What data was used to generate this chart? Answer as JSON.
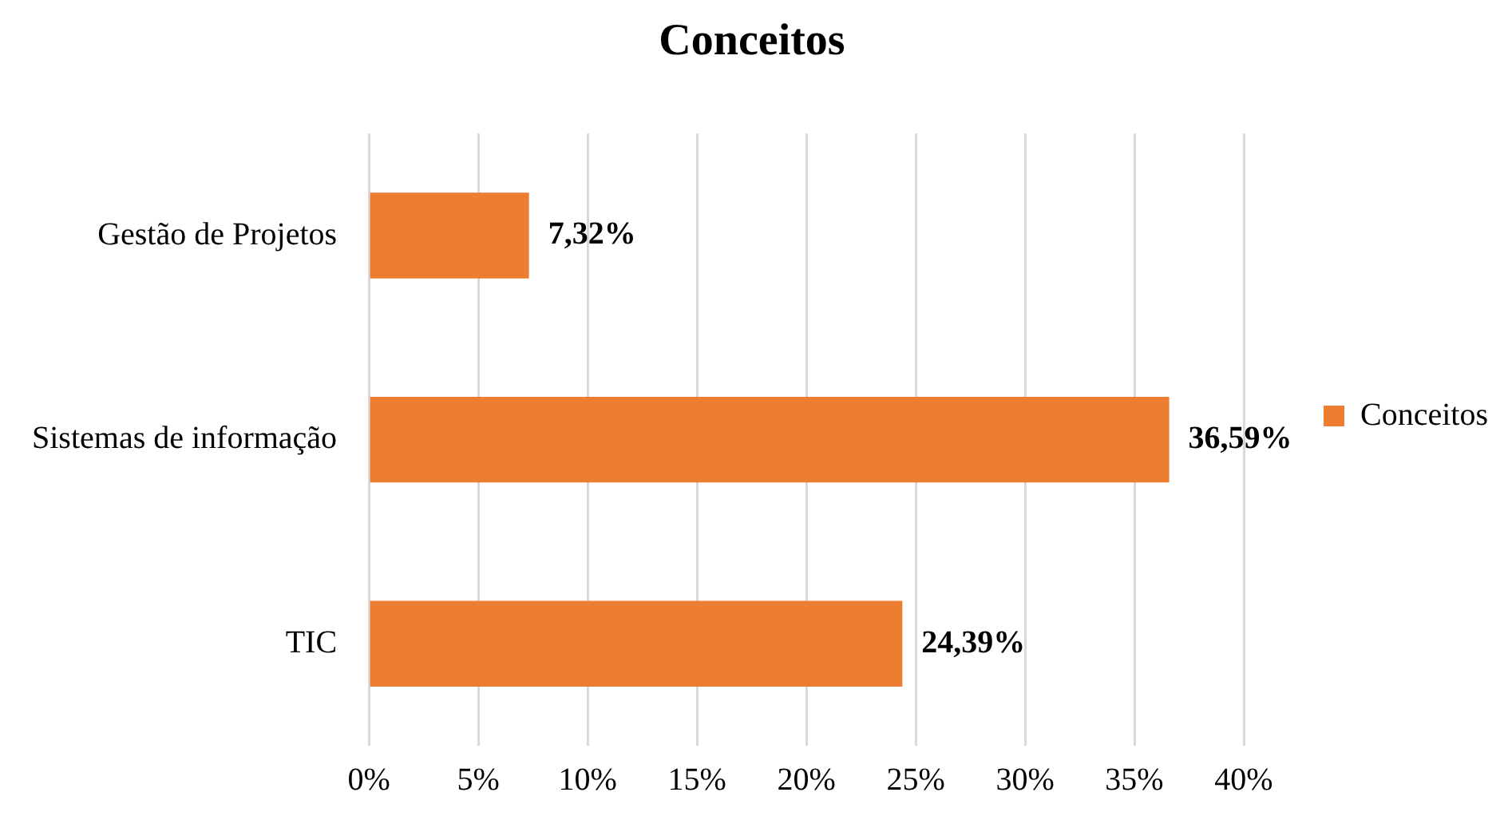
{
  "chart_data": {
    "type": "bar",
    "title": "Conceitos",
    "orientation": "horizontal",
    "categories": [
      "Gestão de Projetos",
      "Sistemas de informação",
      "TIC"
    ],
    "series": [
      {
        "name": "Conceitos",
        "color": "#ed7d31",
        "values": [
          7.32,
          36.59,
          24.39
        ],
        "value_labels": [
          "7,32%",
          "36,59%",
          "24,39%"
        ]
      }
    ],
    "xlim": [
      0,
      40
    ],
    "xticks": [
      {
        "value": 0,
        "label": "0%"
      },
      {
        "value": 5,
        "label": "5%"
      },
      {
        "value": 10,
        "label": "10%"
      },
      {
        "value": 15,
        "label": "15%"
      },
      {
        "value": 20,
        "label": "20%"
      },
      {
        "value": 25,
        "label": "25%"
      },
      {
        "value": 30,
        "label": "30%"
      },
      {
        "value": 35,
        "label": "35%"
      },
      {
        "value": 40,
        "label": "40%"
      }
    ],
    "grid": "x",
    "legend": "right"
  }
}
